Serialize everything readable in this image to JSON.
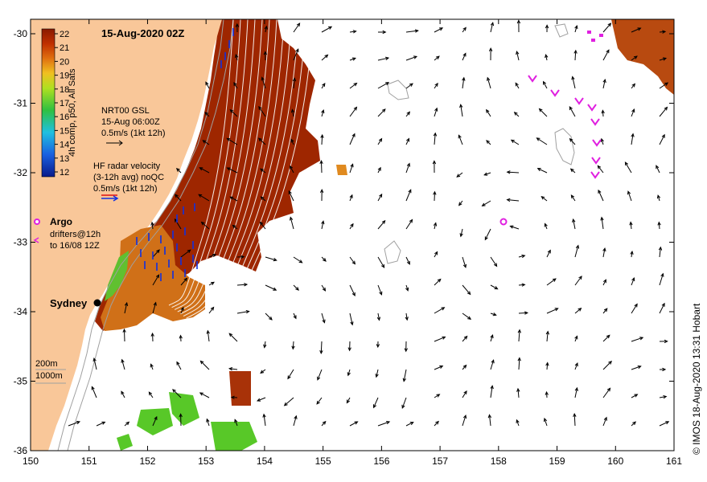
{
  "title": "15-Aug-2020 02Z",
  "x_ticks": [
    "150",
    "151",
    "152",
    "153",
    "154",
    "155",
    "156",
    "157",
    "158",
    "159",
    "160",
    "161"
  ],
  "y_ticks": [
    "-30",
    "-31",
    "-32",
    "-33",
    "-34",
    "-35",
    "-36"
  ],
  "colorbar": {
    "label": "4h comp, p50, All Sats",
    "ticks": [
      "22",
      "21",
      "20",
      "19",
      "18",
      "17",
      "16",
      "15",
      "14",
      "13",
      "12"
    ]
  },
  "legend": {
    "gsl_line1": "NRT00 GSL",
    "gsl_line2": "15-Aug 06:00Z",
    "gsl_line3": "0.5m/s (1kt 12h)",
    "hf_line1": "HF radar velocity",
    "hf_line2": "(3-12h avg) noQC",
    "hf_line3": "0.5m/s (1kt 12h)",
    "argo_label": "Argo",
    "drifter_line1": "drifters@12h",
    "drifter_line2": "to 16/08 12Z",
    "depth_200": "200m",
    "depth_1000": "1000m"
  },
  "city": "Sydney",
  "credit": "© IMOS 18-Aug-2020 13:31 Hobart",
  "colors": {
    "land": "#f9c799",
    "warm": "#9e2600",
    "argo": "#e020e0",
    "hf_red": "#e01010",
    "hf_blue": "#1030e0"
  }
}
